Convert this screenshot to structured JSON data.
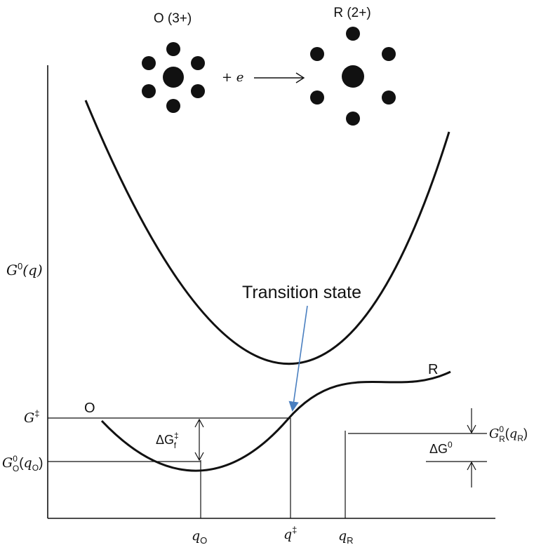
{
  "species": {
    "oxidized_label": "O (3+)",
    "reduced_label": "R (2+)",
    "electron_label": "+ e"
  },
  "axis": {
    "y_label": "G",
    "y_label_sup": "0",
    "y_label_arg": "(q)"
  },
  "curves": {
    "o_label": "O",
    "r_label": "R"
  },
  "callout": {
    "text": "Transition state",
    "arrow_color": "#4a7fc0"
  },
  "levels": {
    "g_dagger": "G",
    "g_dagger_sup": "‡",
    "g0_o": "G",
    "g0_o_sup": "0",
    "g0_o_sub": "O",
    "g0_o_arg_q": "q",
    "g0_o_arg_sub": "O",
    "g0_r": "G",
    "g0_r_sup": "0",
    "g0_r_sub": "R",
    "g0_r_arg_q": "q",
    "g0_r_arg_sub": "R"
  },
  "deltas": {
    "delta_gf": "ΔG",
    "delta_gf_sup": "‡",
    "delta_gf_sub": "f",
    "delta_g0": "ΔG",
    "delta_g0_sup": "0"
  },
  "x_ticks": {
    "q_o": "q",
    "q_o_sub": "O",
    "q_dagger": "q",
    "q_dagger_sup": "‡",
    "q_r": "q",
    "q_r_sub": "R"
  }
}
